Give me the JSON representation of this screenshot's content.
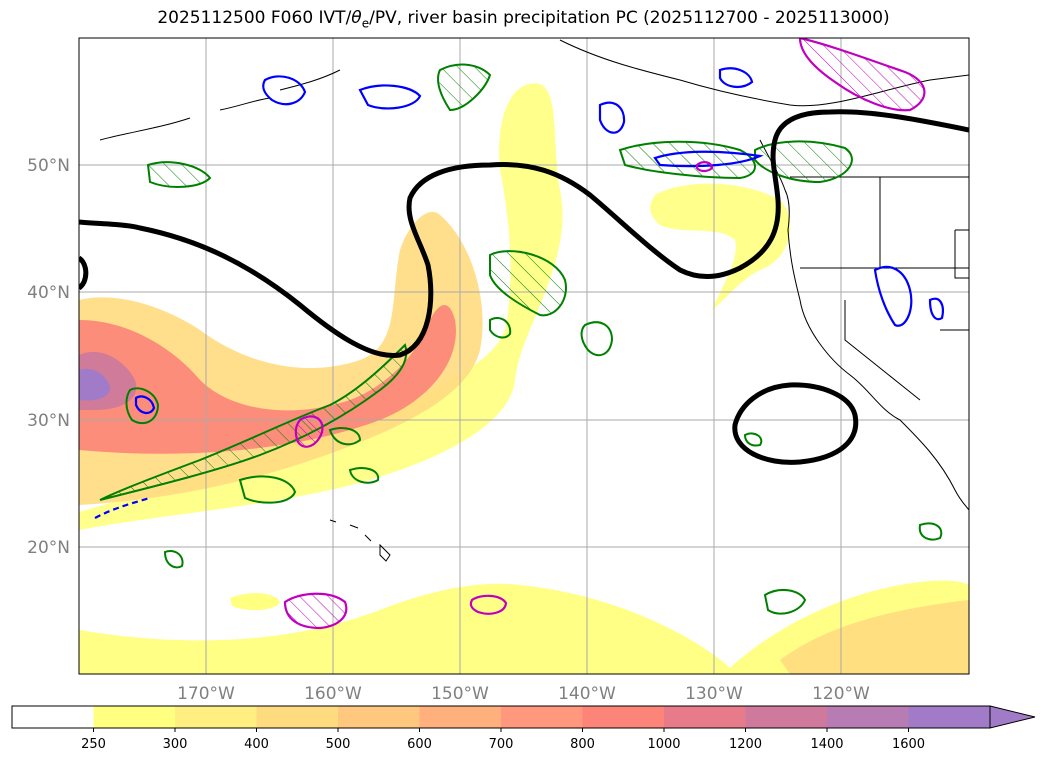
{
  "title": {
    "prefix": "2025112500 F060 IVT/",
    "theta": "θ",
    "theta_sub": "e",
    "suffix": "/PV, river basin precipitation PC (2025112700 - 2025113000)"
  },
  "axes": {
    "lat_labels": [
      "50°N",
      "40°N",
      "30°N",
      "20°N"
    ],
    "lon_labels": [
      "170°W",
      "160°W",
      "150°W",
      "140°W",
      "130°W",
      "120°W"
    ]
  },
  "colorbar": {
    "ticks": [
      "250",
      "300",
      "400",
      "500",
      "600",
      "700",
      "800",
      "1000",
      "1200",
      "1400",
      "1600"
    ],
    "colors": [
      "#ffffff",
      "#ffff80",
      "#ffee80",
      "#ffdb7f",
      "#ffc87e",
      "#ffb07d",
      "#ff987c",
      "#fc8479",
      "#e77b8a",
      "#cf7a9c",
      "#b87cb4",
      "#a17bc8"
    ],
    "extend": "max"
  },
  "colors": {
    "theta_contour": "#000000",
    "pv_contour": "#0000ff",
    "precip_contour": "#008000",
    "hatch": "#c000c0"
  }
}
